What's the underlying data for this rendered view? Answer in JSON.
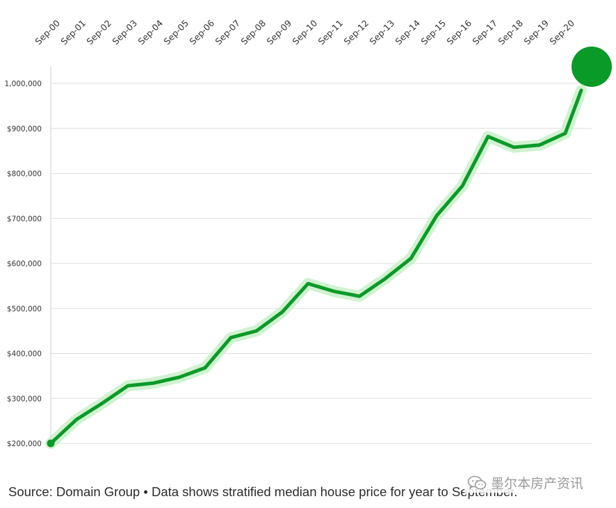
{
  "chart_data": {
    "type": "line",
    "x": [
      "Sep-00",
      "Sep-01",
      "Sep-02",
      "Sep-03",
      "Sep-04",
      "Sep-05",
      "Sep-06",
      "Sep-07",
      "Sep-08",
      "Sep-09",
      "Sep-10",
      "Sep-11",
      "Sep-12",
      "Sep-13",
      "Sep-14",
      "Sep-15",
      "Sep-16",
      "Sep-17",
      "Sep-18",
      "Sep-19",
      "Sep-20"
    ],
    "series": [
      {
        "values": [
          200000,
          253000,
          289000,
          328000,
          334000,
          347000,
          368000,
          435000,
          450000,
          492000,
          555000,
          538000,
          527000,
          566000,
          611000,
          706000,
          772000,
          882000,
          858000,
          863000,
          889000
        ]
      }
    ],
    "ytick_values": [
      200000,
      300000,
      400000,
      500000,
      600000,
      700000,
      800000,
      900000,
      1000000
    ],
    "ytick_labels": [
      "$200,000",
      "$300,000",
      "$400,000",
      "$500,000",
      "$600,000",
      "$700,000",
      "$800,000",
      "$900,000",
      "1,000,000"
    ],
    "ylim": [
      200000,
      1000000
    ],
    "grid": true,
    "line_color": "#0a9a28",
    "glow_color": "#c8f0c8",
    "grid_color": "#dddddd",
    "endpoint_marker": "large filled circle at top-right beyond last point"
  },
  "source_note": "Source: Domain Group • Data shows stratified median house price for year to September.",
  "watermark": {
    "text": "墨尔本房产资讯",
    "icon": "wechat-icon"
  }
}
